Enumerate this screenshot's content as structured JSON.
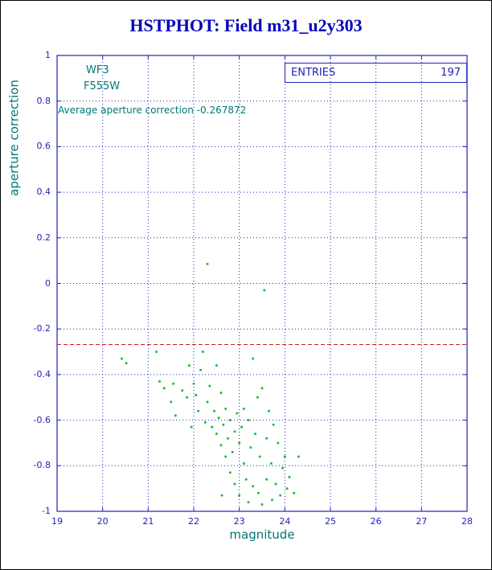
{
  "title": "HSTPHOT: Field m31_u2y303",
  "colors": {
    "title_blue": "#0000bb",
    "axis_blue": "#2222bb",
    "label_teal": "#007777",
    "point_green": "#00bb22",
    "ref_red": "#cc2211",
    "background": "#ffffff"
  },
  "annotations": {
    "camera": "WF3",
    "filter": "F555W",
    "average_line_text": "Average aperture correction -0.267872"
  },
  "stats_box": {
    "label": "ENTRIES",
    "value": "197"
  },
  "chart_data": {
    "type": "scatter",
    "title": "HSTPHOT: Field m31_u2y303",
    "xlabel": "magnitude",
    "ylabel": "aperture correction",
    "xlim": [
      19,
      28
    ],
    "ylim": [
      -1,
      1
    ],
    "xticks": [
      19,
      20,
      21,
      22,
      23,
      24,
      25,
      26,
      27,
      28
    ],
    "yticks": [
      1,
      0.8,
      0.6,
      0.4,
      0.2,
      0,
      -0.2,
      -0.4,
      -0.6,
      -0.8,
      -1
    ],
    "ytick_labels": [
      "1",
      "0.8",
      "0.6",
      "0.4",
      "0.2",
      "0",
      "-0.2",
      "-0.4",
      "-0.6",
      "-0.8",
      "-1"
    ],
    "grid": true,
    "legend_position": "top-right stat box",
    "entries": 197,
    "average_aperture_correction": -0.267872,
    "reference_line": {
      "y": -0.267872,
      "style": "dashed"
    },
    "series": [
      {
        "name": "aperture correction vs magnitude",
        "points": [
          [
            20.42,
            -0.33
          ],
          [
            20.52,
            -0.35
          ],
          [
            21.18,
            -0.3
          ],
          [
            21.25,
            -0.43
          ],
          [
            21.35,
            -0.46
          ],
          [
            21.5,
            -0.52
          ],
          [
            21.55,
            -0.44
          ],
          [
            21.6,
            -0.58
          ],
          [
            21.75,
            -0.47
          ],
          [
            21.85,
            -0.5
          ],
          [
            21.9,
            -0.36
          ],
          [
            21.95,
            -0.63
          ],
          [
            22.0,
            -0.44
          ],
          [
            22.05,
            -0.49
          ],
          [
            22.1,
            -0.56
          ],
          [
            22.15,
            -0.38
          ],
          [
            22.2,
            -0.3
          ],
          [
            22.25,
            -0.61
          ],
          [
            22.3,
            0.085
          ],
          [
            22.3,
            -0.52
          ],
          [
            22.35,
            -0.45
          ],
          [
            22.4,
            -0.63
          ],
          [
            22.45,
            -0.56
          ],
          [
            22.5,
            -0.36
          ],
          [
            22.5,
            -0.66
          ],
          [
            22.55,
            -0.59
          ],
          [
            22.6,
            -0.48
          ],
          [
            22.6,
            -0.71
          ],
          [
            22.62,
            -0.93
          ],
          [
            22.65,
            -0.62
          ],
          [
            22.7,
            -0.55
          ],
          [
            22.7,
            -0.76
          ],
          [
            22.75,
            -0.68
          ],
          [
            22.8,
            -0.6
          ],
          [
            22.8,
            -0.83
          ],
          [
            22.85,
            -0.74
          ],
          [
            22.9,
            -0.65
          ],
          [
            22.9,
            -0.88
          ],
          [
            22.95,
            -0.57
          ],
          [
            23.0,
            -0.7
          ],
          [
            23.0,
            -0.93
          ],
          [
            23.05,
            -0.63
          ],
          [
            23.1,
            -0.55
          ],
          [
            23.1,
            -0.79
          ],
          [
            23.15,
            -0.86
          ],
          [
            23.2,
            -0.6
          ],
          [
            23.2,
            -0.96
          ],
          [
            23.25,
            -0.72
          ],
          [
            23.3,
            -0.33
          ],
          [
            23.3,
            -0.89
          ],
          [
            23.35,
            -0.66
          ],
          [
            23.4,
            -0.5
          ],
          [
            23.42,
            -0.92
          ],
          [
            23.45,
            -0.76
          ],
          [
            23.5,
            -0.46
          ],
          [
            23.5,
            -0.97
          ],
          [
            23.55,
            -0.03
          ],
          [
            23.6,
            -0.68
          ],
          [
            23.6,
            -0.86
          ],
          [
            23.65,
            -0.56
          ],
          [
            23.7,
            -0.79
          ],
          [
            23.72,
            -0.95
          ],
          [
            23.75,
            -0.62
          ],
          [
            23.8,
            -0.88
          ],
          [
            23.85,
            -0.7
          ],
          [
            23.9,
            -0.93
          ],
          [
            23.95,
            -0.81
          ],
          [
            24.0,
            -0.76
          ],
          [
            24.05,
            -0.9
          ],
          [
            24.1,
            -0.85
          ],
          [
            24.2,
            -0.92
          ],
          [
            24.3,
            -0.76
          ]
        ]
      }
    ]
  }
}
